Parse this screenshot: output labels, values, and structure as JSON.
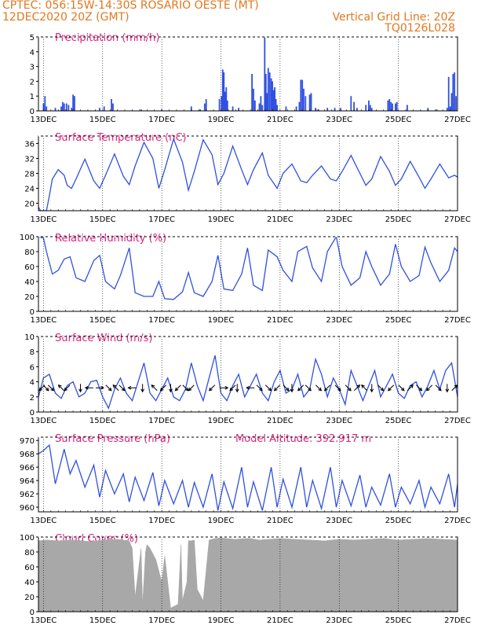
{
  "header": {
    "line1_left": "CPTEC:   056:15W-14:30S   ROSARIO OESTE (MT)",
    "line2_left": "12DEC2020 20Z (GMT)",
    "line2_right": "Vertical Grid Line: 20Z",
    "line3_right": "TQ0126L028"
  },
  "colors": {
    "header_text": "#e07820",
    "panel_title": "#e0207e",
    "series_line": "#3050e0",
    "cloud_fill": "#a8a8a8"
  },
  "x_ticks": [
    "13DEC",
    "15DEC",
    "17DEC",
    "19DEC",
    "21DEC",
    "23DEC",
    "25DEC",
    "27DEC"
  ],
  "chart_data": [
    {
      "type": "bar",
      "title": "Precipitation (mm/h)",
      "x_range_days": [
        12.83,
        27.0
      ],
      "ylim": [
        0,
        5
      ],
      "yticks": [
        0,
        1,
        2,
        3,
        4,
        5
      ],
      "events": [
        {
          "x": 13.0,
          "y": 0.5
        },
        {
          "x": 13.05,
          "y": 1.0
        },
        {
          "x": 13.1,
          "y": 0.3
        },
        {
          "x": 13.4,
          "y": 0.2
        },
        {
          "x": 13.6,
          "y": 0.3
        },
        {
          "x": 13.65,
          "y": 0.6
        },
        {
          "x": 13.7,
          "y": 0.5
        },
        {
          "x": 13.78,
          "y": 0.5
        },
        {
          "x": 13.85,
          "y": 0.4
        },
        {
          "x": 13.95,
          "y": 0.2
        },
        {
          "x": 14.0,
          "y": 1.1
        },
        {
          "x": 14.05,
          "y": 1.0
        },
        {
          "x": 14.9,
          "y": 0.2
        },
        {
          "x": 15.05,
          "y": 0.3
        },
        {
          "x": 15.3,
          "y": 0.8
        },
        {
          "x": 15.35,
          "y": 0.5
        },
        {
          "x": 16.3,
          "y": 0.1
        },
        {
          "x": 17.0,
          "y": 0.1
        },
        {
          "x": 18.0,
          "y": 0.3
        },
        {
          "x": 18.3,
          "y": 0.1
        },
        {
          "x": 18.45,
          "y": 0.5
        },
        {
          "x": 18.5,
          "y": 0.8
        },
        {
          "x": 18.95,
          "y": 0.8
        },
        {
          "x": 19.02,
          "y": 1.0
        },
        {
          "x": 19.06,
          "y": 2.8
        },
        {
          "x": 19.1,
          "y": 2.6
        },
        {
          "x": 19.14,
          "y": 1.3
        },
        {
          "x": 19.18,
          "y": 1.6
        },
        {
          "x": 19.22,
          "y": 0.7
        },
        {
          "x": 19.4,
          "y": 0.3
        },
        {
          "x": 19.6,
          "y": 0.2
        },
        {
          "x": 20.05,
          "y": 2.5
        },
        {
          "x": 20.1,
          "y": 1.5
        },
        {
          "x": 20.15,
          "y": 0.7
        },
        {
          "x": 20.3,
          "y": 0.5
        },
        {
          "x": 20.35,
          "y": 1.0
        },
        {
          "x": 20.4,
          "y": 0.4
        },
        {
          "x": 20.48,
          "y": 5.0
        },
        {
          "x": 20.52,
          "y": 2.5
        },
        {
          "x": 20.56,
          "y": 1.2
        },
        {
          "x": 20.6,
          "y": 2.9
        },
        {
          "x": 20.65,
          "y": 2.6
        },
        {
          "x": 20.7,
          "y": 2.2
        },
        {
          "x": 20.74,
          "y": 2.0
        },
        {
          "x": 20.78,
          "y": 1.4
        },
        {
          "x": 20.82,
          "y": 1.6
        },
        {
          "x": 20.86,
          "y": 0.8
        },
        {
          "x": 20.9,
          "y": 0.4
        },
        {
          "x": 21.2,
          "y": 0.3
        },
        {
          "x": 21.55,
          "y": 0.3
        },
        {
          "x": 21.65,
          "y": 0.6
        },
        {
          "x": 21.7,
          "y": 2.1
        },
        {
          "x": 21.75,
          "y": 2.1
        },
        {
          "x": 21.8,
          "y": 1.5
        },
        {
          "x": 21.86,
          "y": 1.0
        },
        {
          "x": 22.0,
          "y": 1.1
        },
        {
          "x": 22.05,
          "y": 1.2
        },
        {
          "x": 22.2,
          "y": 0.2
        },
        {
          "x": 22.3,
          "y": 0.1
        },
        {
          "x": 22.6,
          "y": 0.2
        },
        {
          "x": 22.85,
          "y": 0.2
        },
        {
          "x": 23.05,
          "y": 0.2
        },
        {
          "x": 23.4,
          "y": 1.0
        },
        {
          "x": 23.5,
          "y": 0.6
        },
        {
          "x": 23.6,
          "y": 0.2
        },
        {
          "x": 23.9,
          "y": 0.4
        },
        {
          "x": 24.0,
          "y": 0.7
        },
        {
          "x": 24.05,
          "y": 0.4
        },
        {
          "x": 24.1,
          "y": 0.2
        },
        {
          "x": 24.65,
          "y": 0.7
        },
        {
          "x": 24.7,
          "y": 0.8
        },
        {
          "x": 24.75,
          "y": 0.6
        },
        {
          "x": 24.8,
          "y": 0.5
        },
        {
          "x": 24.9,
          "y": 0.5
        },
        {
          "x": 24.95,
          "y": 0.6
        },
        {
          "x": 25.3,
          "y": 0.4
        },
        {
          "x": 26.0,
          "y": 0.2
        },
        {
          "x": 26.3,
          "y": 0.1
        },
        {
          "x": 26.65,
          "y": 0.2
        },
        {
          "x": 26.7,
          "y": 2.3
        },
        {
          "x": 26.75,
          "y": 0.3
        },
        {
          "x": 26.8,
          "y": 1.2
        },
        {
          "x": 26.85,
          "y": 2.5
        },
        {
          "x": 26.9,
          "y": 2.6
        },
        {
          "x": 26.95,
          "y": 1.0
        }
      ]
    },
    {
      "type": "line",
      "title": "Surface Temperature (nC)",
      "x_range_days": [
        12.83,
        27.0
      ],
      "ylim": [
        18,
        38
      ],
      "yticks": [
        20,
        24,
        28,
        32,
        36
      ],
      "x": [
        12.83,
        12.9,
        13.1,
        13.2,
        13.3,
        13.5,
        13.7,
        13.8,
        13.95,
        14.1,
        14.4,
        14.7,
        14.9,
        15.1,
        15.4,
        15.7,
        15.9,
        16.1,
        16.4,
        16.7,
        16.9,
        17.1,
        17.4,
        17.7,
        17.9,
        18.1,
        18.4,
        18.7,
        18.9,
        19.1,
        19.4,
        19.7,
        19.9,
        20.1,
        20.4,
        20.6,
        20.9,
        21.1,
        21.4,
        21.7,
        21.9,
        22.1,
        22.4,
        22.7,
        22.9,
        23.1,
        23.4,
        23.7,
        23.9,
        24.1,
        24.4,
        24.7,
        24.9,
        25.1,
        25.4,
        25.7,
        25.9,
        26.1,
        26.4,
        26.7,
        26.9,
        27.0
      ],
      "values": [
        19.0,
        18.0,
        18.0,
        22.0,
        26.5,
        29.0,
        27.5,
        24.8,
        24.0,
        26.5,
        31.8,
        26.0,
        24.0,
        27.5,
        33.2,
        27.2,
        25.0,
        30.0,
        36.3,
        32.0,
        24.0,
        29.0,
        37.2,
        31.0,
        23.5,
        28.5,
        37.0,
        33.0,
        25.0,
        28.0,
        35.3,
        29.0,
        25.0,
        29.0,
        33.5,
        27.5,
        24.0,
        28.0,
        30.5,
        26.0,
        25.5,
        27.5,
        30.0,
        26.5,
        26.0,
        28.5,
        32.8,
        28.0,
        24.8,
        26.5,
        32.5,
        28.5,
        24.8,
        26.5,
        31.2,
        27.0,
        24.0,
        26.5,
        30.5,
        26.8,
        27.5,
        27.0
      ]
    },
    {
      "type": "line",
      "title": "Relative Humidity (%)",
      "x_range_days": [
        12.83,
        27.0
      ],
      "ylim": [
        0,
        100
      ],
      "yticks": [
        0,
        20,
        40,
        60,
        80,
        100
      ],
      "x": [
        12.83,
        13.0,
        13.1,
        13.3,
        13.5,
        13.7,
        13.9,
        14.1,
        14.4,
        14.7,
        14.9,
        15.1,
        15.4,
        15.6,
        15.9,
        16.1,
        16.4,
        16.7,
        16.9,
        17.1,
        17.4,
        17.7,
        17.9,
        18.1,
        18.4,
        18.7,
        18.9,
        19.1,
        19.4,
        19.7,
        19.9,
        20.1,
        20.4,
        20.6,
        20.9,
        21.1,
        21.4,
        21.6,
        21.9,
        22.1,
        22.4,
        22.6,
        22.9,
        23.1,
        23.4,
        23.7,
        23.9,
        24.1,
        24.4,
        24.7,
        24.9,
        25.1,
        25.4,
        25.7,
        25.9,
        26.1,
        26.4,
        26.7,
        26.9,
        27.0
      ],
      "values": [
        100,
        98,
        80,
        50,
        55,
        70,
        73,
        45,
        40,
        68,
        75,
        40,
        30,
        48,
        85,
        25,
        20,
        20,
        40,
        17,
        16,
        26,
        52,
        25,
        20,
        40,
        75,
        30,
        28,
        50,
        85,
        35,
        28,
        82,
        73,
        55,
        40,
        80,
        87,
        58,
        40,
        80,
        100,
        60,
        35,
        45,
        80,
        60,
        35,
        50,
        90,
        60,
        40,
        48,
        86,
        65,
        40,
        55,
        85,
        80
      ]
    },
    {
      "type": "line",
      "title": "Surface Wind (m/s)",
      "x_range_days": [
        12.83,
        27.0
      ],
      "ylim": [
        0,
        10
      ],
      "yticks": [
        0,
        2,
        4,
        6,
        8,
        10
      ],
      "x": [
        12.83,
        13.0,
        13.2,
        13.4,
        13.6,
        13.8,
        14.0,
        14.2,
        14.4,
        14.6,
        14.8,
        15.0,
        15.2,
        15.4,
        15.6,
        15.8,
        16.0,
        16.2,
        16.4,
        16.6,
        16.8,
        17.0,
        17.2,
        17.4,
        17.6,
        17.8,
        18.0,
        18.2,
        18.4,
        18.6,
        18.8,
        19.0,
        19.2,
        19.4,
        19.6,
        19.8,
        20.0,
        20.2,
        20.4,
        20.6,
        20.8,
        21.0,
        21.2,
        21.4,
        21.6,
        21.8,
        22.0,
        22.2,
        22.4,
        22.6,
        22.8,
        23.0,
        23.2,
        23.4,
        23.6,
        23.8,
        24.0,
        24.2,
        24.4,
        24.6,
        24.8,
        25.0,
        25.2,
        25.4,
        25.6,
        25.8,
        26.0,
        26.2,
        26.4,
        26.6,
        26.8,
        27.0
      ],
      "values": [
        2.0,
        4.5,
        5.0,
        2.5,
        1.8,
        3.5,
        4.0,
        2.0,
        2.5,
        4.0,
        4.2,
        2.0,
        0.5,
        3.0,
        4.5,
        2.5,
        1.5,
        4.0,
        6.5,
        2.5,
        1.5,
        3.0,
        4.5,
        2.0,
        1.5,
        3.0,
        6.5,
        3.5,
        1.5,
        4.5,
        7.5,
        2.5,
        1.5,
        3.5,
        5.0,
        2.0,
        3.5,
        5.0,
        2.5,
        1.5,
        4.0,
        5.5,
        2.5,
        3.0,
        5.0,
        2.0,
        3.0,
        7.0,
        5.0,
        2.0,
        4.5,
        3.0,
        1.0,
        5.5,
        3.5,
        1.5,
        3.5,
        5.5,
        2.0,
        3.5,
        5.0,
        2.5,
        1.8,
        3.5,
        4.0,
        2.0,
        3.5,
        5.5,
        3.0,
        5.5,
        6.5,
        2.0
      ]
    },
    {
      "type": "line",
      "title": "Surface Pressure (hPa)",
      "subtitle": "Model Altitude: 392.917 m",
      "x_range_days": [
        12.83,
        27.0
      ],
      "ylim": [
        959.3,
        970.5
      ],
      "yticks": [
        960,
        962,
        964,
        966,
        968,
        970
      ],
      "x": [
        12.83,
        13.0,
        13.2,
        13.4,
        13.7,
        13.9,
        14.1,
        14.4,
        14.7,
        14.9,
        15.1,
        15.4,
        15.7,
        15.9,
        16.1,
        16.4,
        16.7,
        16.9,
        17.1,
        17.4,
        17.7,
        17.9,
        18.1,
        18.4,
        18.7,
        18.9,
        19.1,
        19.4,
        19.7,
        19.9,
        20.1,
        20.4,
        20.7,
        20.9,
        21.1,
        21.4,
        21.7,
        21.9,
        22.1,
        22.4,
        22.7,
        22.9,
        23.1,
        23.4,
        23.7,
        23.9,
        24.1,
        24.4,
        24.7,
        24.9,
        25.1,
        25.4,
        25.7,
        25.9,
        26.1,
        26.4,
        26.7,
        26.9,
        27.0
      ],
      "values": [
        968.0,
        968.5,
        969.3,
        963.5,
        968.7,
        965.0,
        967.0,
        963.0,
        966.3,
        961.5,
        965.5,
        962.0,
        965.0,
        960.8,
        964.5,
        961.0,
        965.2,
        960.2,
        964.0,
        960.5,
        964.0,
        960.0,
        963.7,
        960.0,
        965.0,
        959.5,
        963.8,
        959.8,
        966.0,
        960.0,
        963.8,
        959.5,
        966.0,
        960.0,
        964.2,
        960.0,
        966.0,
        960.0,
        964.0,
        959.8,
        966.0,
        960.0,
        964.0,
        960.2,
        964.8,
        960.0,
        963.0,
        960.3,
        965.0,
        960.0,
        963.0,
        960.5,
        964.0,
        960.0,
        963.0,
        960.5,
        965.0,
        960.0,
        963.5
      ]
    },
    {
      "type": "area",
      "title": "Cloud Cover (%)",
      "x_range_days": [
        12.83,
        27.0
      ],
      "ylim": [
        0,
        100
      ],
      "yticks": [
        0,
        20,
        40,
        60,
        80,
        100
      ],
      "x": [
        12.83,
        13.1,
        13.5,
        14.0,
        14.3,
        14.6,
        15.0,
        15.5,
        15.9,
        16.0,
        16.1,
        16.3,
        16.35,
        16.45,
        16.5,
        16.6,
        16.8,
        17.0,
        17.1,
        17.3,
        17.55,
        17.65,
        17.7,
        17.85,
        17.9,
        18.0,
        18.1,
        18.2,
        18.4,
        18.6,
        18.8,
        19.0,
        19.2,
        19.5,
        19.8,
        20.0,
        20.3,
        20.6,
        21.0,
        21.5,
        22.0,
        22.5,
        23.0,
        23.5,
        24.0,
        24.5,
        25.0,
        25.5,
        26.0,
        26.5,
        27.0
      ],
      "values": [
        95,
        96,
        95,
        96,
        95,
        94,
        96,
        97,
        95,
        85,
        20,
        85,
        10,
        80,
        90,
        85,
        70,
        40,
        75,
        5,
        10,
        90,
        15,
        40,
        95,
        95,
        96,
        30,
        15,
        96,
        98,
        99,
        98,
        97,
        98,
        98,
        96,
        97,
        98,
        97,
        96,
        95,
        97,
        96,
        97,
        98,
        96,
        97,
        98,
        97,
        96
      ]
    }
  ],
  "wind_vectors": [
    {
      "x": 12.95,
      "dir": "SW"
    },
    {
      "x": 13.08,
      "dir": "SE"
    },
    {
      "x": 13.25,
      "dir": "SE"
    },
    {
      "x": 13.6,
      "dir": "NW"
    },
    {
      "x": 13.8,
      "dir": "SW"
    },
    {
      "x": 14.25,
      "dir": "S"
    },
    {
      "x": 14.55,
      "dir": "W"
    },
    {
      "x": 14.9,
      "dir": "E"
    },
    {
      "x": 15.2,
      "dir": "SE"
    },
    {
      "x": 15.45,
      "dir": "NW"
    },
    {
      "x": 15.65,
      "dir": "SE"
    },
    {
      "x": 16.0,
      "dir": "W"
    },
    {
      "x": 16.35,
      "dir": "S"
    },
    {
      "x": 16.75,
      "dir": "NW"
    },
    {
      "x": 17.05,
      "dir": "SW"
    },
    {
      "x": 17.3,
      "dir": "S"
    },
    {
      "x": 17.55,
      "dir": "SW"
    },
    {
      "x": 17.8,
      "dir": "SE"
    },
    {
      "x": 18.0,
      "dir": "SW"
    },
    {
      "x": 18.7,
      "dir": "SW"
    },
    {
      "x": 19.1,
      "dir": "E"
    },
    {
      "x": 19.4,
      "dir": "SW"
    },
    {
      "x": 19.55,
      "dir": "S"
    },
    {
      "x": 20.0,
      "dir": "W"
    },
    {
      "x": 20.3,
      "dir": "SE"
    },
    {
      "x": 20.6,
      "dir": "SE"
    },
    {
      "x": 20.9,
      "dir": "SW"
    },
    {
      "x": 21.2,
      "dir": "SE"
    },
    {
      "x": 21.4,
      "dir": "S"
    },
    {
      "x": 21.7,
      "dir": "SW"
    },
    {
      "x": 21.95,
      "dir": "SE"
    },
    {
      "x": 22.3,
      "dir": "SE"
    },
    {
      "x": 22.6,
      "dir": "SW"
    },
    {
      "x": 22.95,
      "dir": "SE"
    },
    {
      "x": 23.3,
      "dir": "SE"
    },
    {
      "x": 23.6,
      "dir": "NE"
    },
    {
      "x": 23.85,
      "dir": "NW"
    },
    {
      "x": 24.1,
      "dir": "S"
    },
    {
      "x": 24.4,
      "dir": "SE"
    },
    {
      "x": 24.75,
      "dir": "SW"
    },
    {
      "x": 25.1,
      "dir": "SE"
    },
    {
      "x": 25.4,
      "dir": "NE"
    },
    {
      "x": 25.7,
      "dir": "SE"
    },
    {
      "x": 26.05,
      "dir": "SW"
    },
    {
      "x": 26.35,
      "dir": "SE"
    },
    {
      "x": 26.65,
      "dir": "S"
    },
    {
      "x": 26.9,
      "dir": "NE"
    }
  ]
}
